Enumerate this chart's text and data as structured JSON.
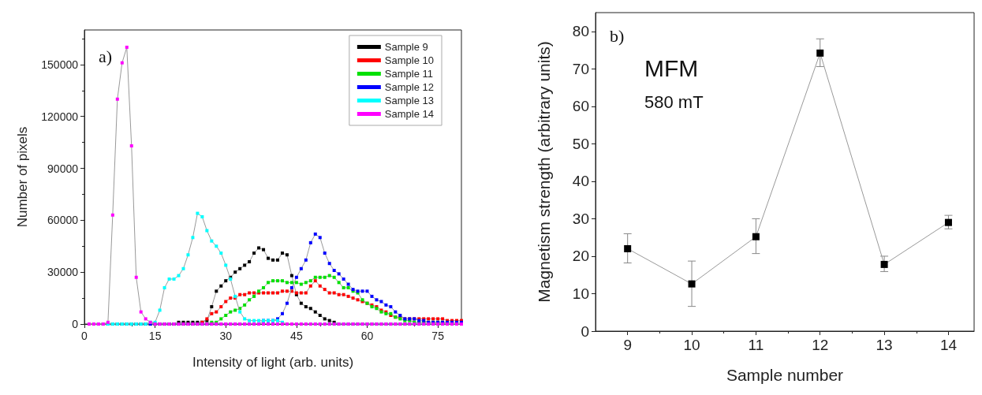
{
  "chart_data": [
    {
      "type": "line",
      "xlabel": "Intensity of light (arb. units)",
      "ylabel": "Number of pixels",
      "annotations": [
        "a)"
      ],
      "x": [
        1,
        2,
        3,
        4,
        5,
        6,
        7,
        8,
        9,
        10,
        11,
        12,
        13,
        14,
        15,
        16,
        17,
        18,
        19,
        20,
        21,
        22,
        23,
        24,
        25,
        26,
        27,
        28,
        29,
        30,
        31,
        32,
        33,
        34,
        35,
        36,
        37,
        38,
        39,
        40,
        41,
        42,
        43,
        44,
        45,
        46,
        47,
        48,
        49,
        50,
        51,
        52,
        53,
        54,
        55,
        56,
        57,
        58,
        59,
        60,
        61,
        62,
        63,
        64,
        65,
        66,
        67,
        68,
        69,
        70,
        71,
        72,
        73,
        74,
        75,
        76,
        77,
        78,
        79,
        80
      ],
      "series": [
        {
          "name": "Sample 9",
          "color": "#000000",
          "values": [
            0,
            0,
            0,
            0,
            0,
            0,
            0,
            0,
            0,
            0,
            0,
            0,
            0,
            0,
            0,
            0,
            0,
            0,
            0,
            1000,
            1000,
            1000,
            1000,
            1000,
            1000,
            2000,
            10000,
            19000,
            22000,
            25000,
            27000,
            30000,
            32000,
            34000,
            36000,
            41000,
            44000,
            43000,
            38000,
            37000,
            37000,
            41000,
            40000,
            28000,
            17000,
            12000,
            10000,
            9000,
            7000,
            5000,
            3000,
            2000,
            1000,
            0,
            0,
            0,
            0,
            0,
            0,
            0,
            0,
            0,
            0,
            0,
            0,
            0,
            0,
            0,
            0,
            0,
            0,
            0,
            0,
            0,
            0,
            0,
            0,
            0,
            0,
            0
          ]
        },
        {
          "name": "Sample 10",
          "color": "#ff0000",
          "values": [
            0,
            0,
            0,
            0,
            0,
            0,
            0,
            0,
            0,
            0,
            0,
            0,
            0,
            0,
            0,
            0,
            0,
            0,
            0,
            0,
            0,
            0,
            0,
            0,
            1000,
            3000,
            6000,
            7000,
            10000,
            13000,
            15000,
            15000,
            17000,
            17000,
            18000,
            18000,
            18000,
            18000,
            18000,
            18000,
            18000,
            19000,
            19000,
            19000,
            18000,
            18000,
            18000,
            22000,
            25000,
            22000,
            20000,
            18000,
            18000,
            17000,
            17000,
            16000,
            15000,
            14000,
            13000,
            12000,
            11000,
            10000,
            8000,
            7000,
            5000,
            4000,
            4000,
            3000,
            3000,
            3000,
            3000,
            3000,
            3000,
            3000,
            3000,
            3000,
            2000,
            2000,
            2000,
            2000
          ]
        },
        {
          "name": "Sample 11",
          "color": "#00e000",
          "values": [
            0,
            0,
            0,
            0,
            0,
            0,
            0,
            0,
            0,
            0,
            0,
            0,
            0,
            0,
            0,
            0,
            0,
            0,
            0,
            0,
            0,
            0,
            0,
            0,
            0,
            0,
            1000,
            1000,
            3000,
            5000,
            7000,
            8000,
            9000,
            11000,
            14000,
            16000,
            19000,
            21000,
            24000,
            25000,
            25000,
            25000,
            24000,
            24000,
            24000,
            23000,
            24000,
            25000,
            27000,
            27000,
            27000,
            28000,
            27000,
            24000,
            21000,
            21000,
            19000,
            18000,
            14000,
            12000,
            10000,
            9000,
            7000,
            6000,
            6000,
            4000,
            3000,
            2000,
            2000,
            1000,
            1000,
            1000,
            1000,
            1000,
            1000,
            1000,
            0,
            0,
            0,
            0
          ]
        },
        {
          "name": "Sample 12",
          "color": "#0000ff",
          "values": [
            0,
            0,
            0,
            0,
            0,
            0,
            0,
            0,
            0,
            0,
            0,
            0,
            0,
            0,
            0,
            0,
            0,
            0,
            0,
            0,
            0,
            0,
            0,
            0,
            0,
            0,
            0,
            0,
            0,
            0,
            0,
            0,
            0,
            0,
            0,
            0,
            0,
            2000,
            2000,
            2000,
            3000,
            6000,
            12000,
            21000,
            27000,
            32000,
            37000,
            47000,
            52000,
            50000,
            41000,
            35000,
            31000,
            29000,
            26000,
            23000,
            20000,
            19000,
            19000,
            19000,
            16000,
            14000,
            13000,
            11000,
            10000,
            7000,
            5000,
            3000,
            3000,
            3000,
            2000,
            2000,
            1000,
            1000,
            1000,
            1000,
            1000,
            1000,
            1000,
            1000
          ]
        },
        {
          "name": "Sample 13",
          "color": "#00ffff",
          "values": [
            0,
            0,
            0,
            0,
            0,
            0,
            0,
            0,
            0,
            0,
            0,
            0,
            0,
            1000,
            1000,
            8000,
            21000,
            26000,
            26000,
            28000,
            32000,
            40000,
            50000,
            64000,
            62000,
            54000,
            48000,
            45000,
            41000,
            34000,
            26000,
            16000,
            7000,
            3000,
            2000,
            2000,
            2000,
            2000,
            2000,
            2000,
            2000,
            1000,
            0,
            0,
            0,
            0,
            0,
            0,
            0,
            0,
            0,
            0,
            0,
            0,
            0,
            0,
            0,
            0,
            0,
            0,
            0,
            0,
            0,
            0,
            0,
            0,
            0,
            0,
            0,
            0,
            0,
            0,
            0,
            0,
            0,
            0,
            0,
            0,
            0,
            0
          ]
        },
        {
          "name": "Sample 14",
          "color": "#ff00ff",
          "values": [
            0,
            0,
            0,
            0,
            1000,
            63000,
            130000,
            151000,
            160000,
            103000,
            27000,
            7000,
            3000,
            1000,
            0,
            0,
            0,
            0,
            0,
            0,
            0,
            0,
            0,
            0,
            0,
            0,
            0,
            0,
            0,
            0,
            0,
            0,
            0,
            0,
            0,
            0,
            0,
            0,
            0,
            0,
            0,
            0,
            0,
            0,
            0,
            0,
            0,
            0,
            0,
            0,
            0,
            0,
            0,
            0,
            0,
            0,
            0,
            0,
            0,
            0,
            0,
            0,
            0,
            0,
            0,
            0,
            0,
            0,
            0,
            0,
            0,
            0,
            0,
            0,
            0,
            0,
            0,
            0,
            0,
            0
          ]
        }
      ],
      "xlim": [
        0,
        80
      ],
      "xticks": [
        0,
        15,
        30,
        45,
        60,
        75
      ],
      "ylim": [
        0,
        170000
      ],
      "yticks": [
        0,
        30000,
        60000,
        90000,
        120000,
        150000
      ],
      "legend": "top right",
      "marker": "square",
      "line_style": "solid",
      "grid": false
    },
    {
      "type": "line",
      "xlabel": "Sample number",
      "ylabel": "Magnetism strength (arbitrary units)",
      "annotations": [
        "b)",
        "MFM",
        "580 mT"
      ],
      "x": [
        9,
        10,
        11,
        12,
        13,
        14
      ],
      "series": [
        {
          "color": "#000000",
          "values": [
            22,
            12.6,
            25.2,
            74.2,
            17.8,
            29
          ],
          "errors": [
            [
              18.2,
              26
            ],
            [
              6.6,
              18.7
            ],
            [
              20.7,
              30
            ],
            [
              70.6,
              78
            ],
            [
              15.9,
              20
            ],
            [
              27.3,
              30.9
            ]
          ]
        }
      ],
      "xlim": [
        8.5,
        14.4
      ],
      "xticks": [
        9,
        10,
        11,
        12,
        13,
        14
      ],
      "ylim": [
        0,
        85
      ],
      "yticks": [
        0,
        10,
        20,
        30,
        40,
        50,
        60,
        70,
        80
      ],
      "legend": false,
      "marker": "square",
      "line_style": "solid",
      "grid": false
    }
  ]
}
